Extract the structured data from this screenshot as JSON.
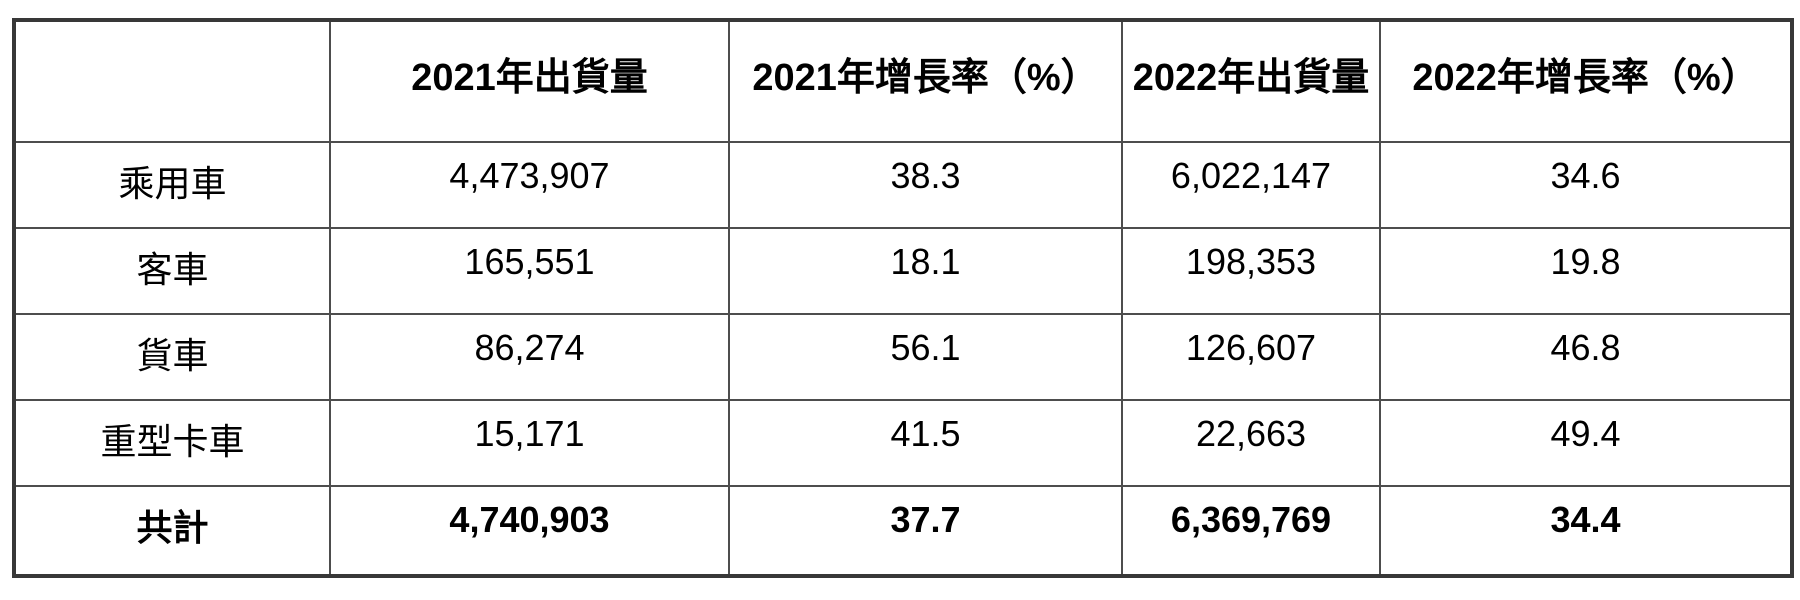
{
  "table": {
    "columns": [
      "",
      "2021年出貨量",
      "2021年增長率（%）",
      "2022年出貨量",
      "2022年增長率（%）"
    ],
    "rows": [
      {
        "label": "乘用車",
        "values": [
          "4,473,907",
          "38.3",
          "6,022,147",
          "34.6"
        ]
      },
      {
        "label": "客車",
        "values": [
          "165,551",
          "18.1",
          "198,353",
          "19.8"
        ]
      },
      {
        "label": "貨車",
        "values": [
          "86,274",
          "56.1",
          "126,607",
          "46.8"
        ]
      },
      {
        "label": "重型卡車",
        "values": [
          "15,171",
          "41.5",
          "22,663",
          "49.4"
        ]
      },
      {
        "label": "共計",
        "values": [
          "4,740,903",
          "37.7",
          "6,369,769",
          "34.4"
        ]
      }
    ],
    "total_row_label": "共計"
  },
  "chart_data": {
    "type": "table",
    "title": "",
    "columns": [
      "",
      "2021年出貨量",
      "2021年增長率（%）",
      "2022年出貨量",
      "2022年增長率（%）"
    ],
    "categories": [
      "乘用車",
      "客車",
      "貨車",
      "重型卡車",
      "共計"
    ],
    "series": [
      {
        "name": "2021年出貨量",
        "values": [
          4473907,
          165551,
          86274,
          15171,
          4740903
        ]
      },
      {
        "name": "2021年增長率（%）",
        "values": [
          38.3,
          18.1,
          56.1,
          41.5,
          37.7
        ]
      },
      {
        "name": "2022年出貨量",
        "values": [
          6022147,
          198353,
          126607,
          22663,
          6369769
        ]
      },
      {
        "name": "2022年增長率（%）",
        "values": [
          34.6,
          19.8,
          46.8,
          49.4,
          34.4
        ]
      }
    ]
  },
  "colors": {
    "background": "#ffffff",
    "text": "#000000",
    "border_outer": "#383838",
    "border_inner": "#4d4d4d"
  }
}
